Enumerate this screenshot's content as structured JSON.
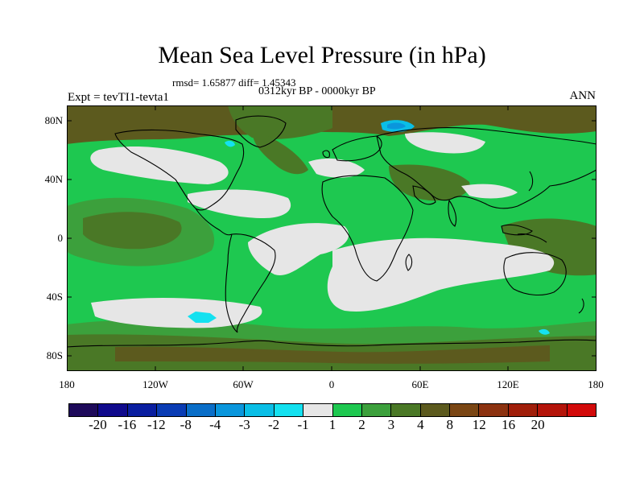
{
  "title": "Mean Sea Level Pressure (in hPa)",
  "stats": "rmsd= 1.65877 diff= 1.45343",
  "period": "0312kyr BP - 0000kyr BP",
  "experiment": "Expt = tevTI1-tevta1",
  "season": "ANN",
  "lat_labels": [
    "80N",
    "40N",
    "0",
    "40S",
    "80S"
  ],
  "lon_labels": [
    "180",
    "120W",
    "60W",
    "0",
    "60E",
    "120E",
    "180"
  ],
  "colorbar": {
    "colors": [
      "#1e0a5a",
      "#100a8c",
      "#0a1ea0",
      "#0a3cb4",
      "#0a6ec8",
      "#0a96dc",
      "#0abee6",
      "#14e1f0",
      "#e6e6e6",
      "#1ec850",
      "#3ca03c",
      "#4a7826",
      "#5c5a1e",
      "#7a4614",
      "#8c3210",
      "#a01e0a",
      "#b4140a",
      "#d20a0a"
    ],
    "labels": [
      "-20",
      "-16",
      "-12",
      "-8",
      "-4",
      "-3",
      "-2",
      "-1",
      "1",
      "2",
      "3",
      "4",
      "8",
      "12",
      "16",
      "20"
    ]
  },
  "legend_colors": {
    "near_zero": "#e6e6e6",
    "one_to_two": "#1ec850",
    "two_to_three": "#3ca03c",
    "three_to_four": "#4a7826",
    "four_to_eight": "#5c5a1e",
    "minus_one_to_minus_two": "#14e1f0",
    "minus_two_to_minus_three": "#0abee6"
  }
}
